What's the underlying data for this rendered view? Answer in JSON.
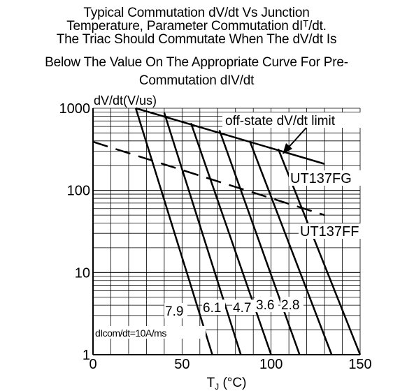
{
  "title_lines": [
    "Typical Commutation dV/dt Vs Junction",
    "Temperature, Parameter Commutation dIᵀ/dt.",
    "The Triac Should Commutate When The dV/dt Is",
    "Below The Value On The Appropriate Curve For Pre-",
    "Commutation dIV/dt"
  ],
  "chart_data": {
    "type": "line",
    "ylabel": "dV/dt(V/us)",
    "xlabel_main": "T",
    "xlabel_sub": "J",
    "xlabel_unit": " (°C)",
    "x_scale": "linear",
    "y_scale": "log",
    "xlim": [
      0,
      150
    ],
    "ylim": [
      1,
      1000
    ],
    "grid": true,
    "x_ticks": [
      {
        "value": 0,
        "label": "0"
      },
      {
        "value": 50,
        "label": "50"
      },
      {
        "value": 100,
        "label": "100"
      },
      {
        "value": 150,
        "label": "150"
      }
    ],
    "y_ticks": [
      {
        "value": 1,
        "label": "1"
      },
      {
        "value": 10,
        "label": "10"
      },
      {
        "value": 100,
        "label": "100"
      },
      {
        "value": 1000,
        "label": "1000"
      }
    ],
    "limit_line": {
      "label": "off-state dV/dt limit",
      "points": [
        [
          24,
          1000
        ],
        [
          130,
          210
        ]
      ]
    },
    "dashed_line": {
      "label": "UT137FF",
      "points": [
        [
          0,
          390
        ],
        [
          130,
          50
        ]
      ]
    },
    "region_label": "UT137FG",
    "series_prefix_label": "dIcom/dt=10A/ms",
    "series": [
      {
        "name": "10",
        "points": [
          [
            24,
            1000
          ],
          [
            67,
            1
          ]
        ]
      },
      {
        "name": "7.9",
        "points": [
          [
            40,
            880
          ],
          [
            83,
            1
          ]
        ]
      },
      {
        "name": "6.1",
        "points": [
          [
            55,
            660
          ],
          [
            100,
            1
          ]
        ]
      },
      {
        "name": "4.7",
        "points": [
          [
            71,
            540
          ],
          [
            116,
            1
          ]
        ]
      },
      {
        "name": "3.6",
        "points": [
          [
            88,
            400
          ],
          [
            134,
            1
          ]
        ]
      },
      {
        "name": "2.8",
        "points": [
          [
            104,
            320
          ],
          [
            150,
            1
          ]
        ]
      }
    ]
  }
}
